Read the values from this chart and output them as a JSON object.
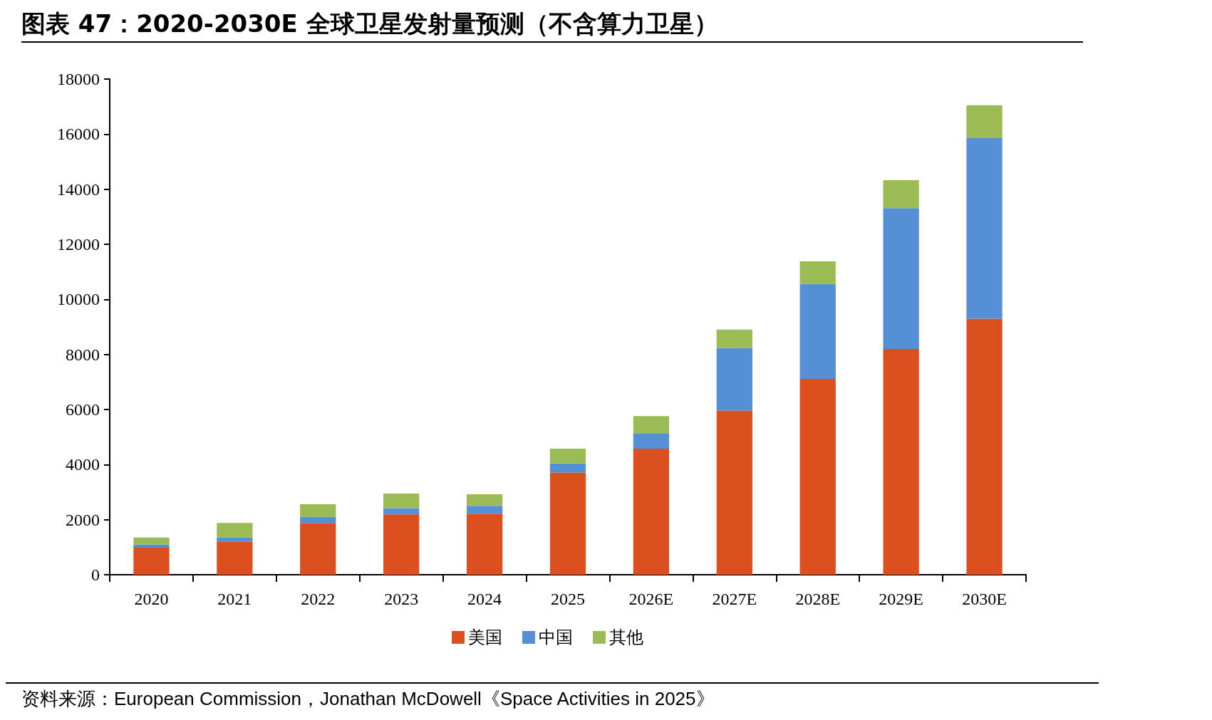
{
  "chart_data": {
    "type": "bar",
    "title": "图表 47：2020-2030E 全球卫星发射量预测（不含算力卫星）",
    "categories": [
      "2020",
      "2021",
      "2022",
      "2023",
      "2024",
      "2025",
      "2026E",
      "2027E",
      "2028E",
      "2029E",
      "2030E"
    ],
    "stacked": true,
    "series": [
      {
        "name": "美国",
        "color": "#dc4f1f",
        "values": [
          980,
          1210,
          1880,
          2190,
          2220,
          3710,
          4580,
          5960,
          7110,
          8200,
          9300
        ]
      },
      {
        "name": "中国",
        "color": "#558fd6",
        "values": [
          120,
          140,
          220,
          230,
          280,
          330,
          560,
          2270,
          3450,
          5110,
          6570
        ]
      },
      {
        "name": "其他",
        "color": "#9bbb55",
        "values": [
          250,
          530,
          460,
          530,
          420,
          540,
          620,
          670,
          820,
          1020,
          1180
        ]
      }
    ],
    "ylim": [
      0,
      18000
    ],
    "yticks": [
      0,
      2000,
      4000,
      6000,
      8000,
      10000,
      12000,
      14000,
      16000,
      18000
    ],
    "grid": false,
    "legend": "bottom",
    "annotations": [
      "资料来源：European Commission，Jonathan McDowell《Space Activities in 2025》"
    ]
  }
}
